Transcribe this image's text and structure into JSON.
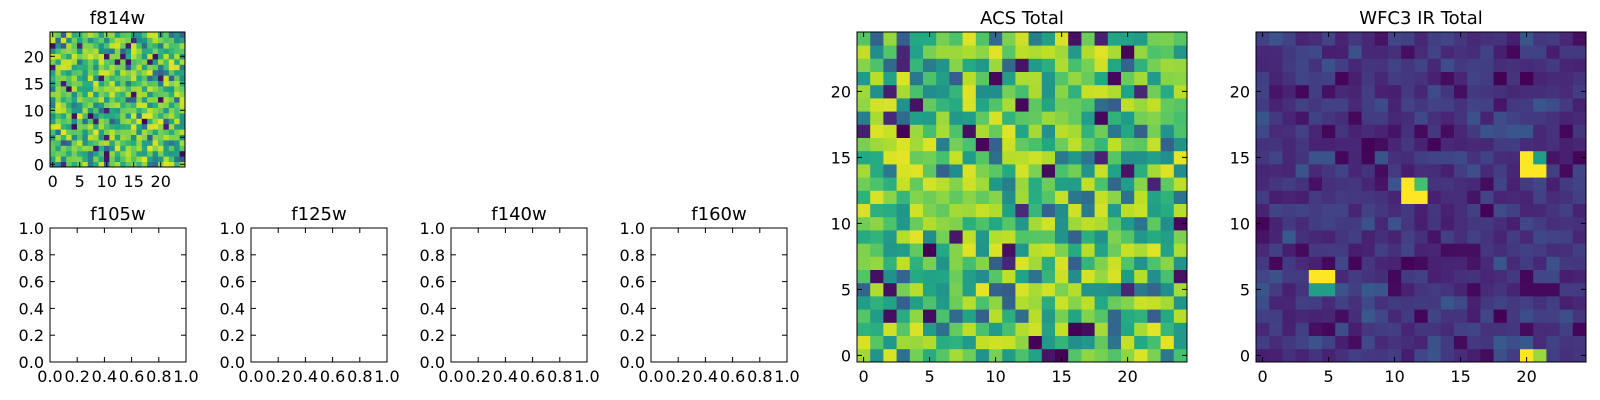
{
  "chart_data": [
    {
      "type": "heatmap",
      "title": "f814w",
      "grid_size": 25,
      "colormap": "viridis",
      "xticks": [
        0,
        5,
        10,
        15,
        20
      ],
      "yticks": [
        0,
        5,
        10,
        15,
        20
      ],
      "xlim": [
        -0.5,
        24.5
      ],
      "ylim": [
        -0.5,
        24.5
      ],
      "value_range": [
        0,
        1
      ],
      "z_description": "25x25 random-noise image, mostly high (yellow-green) values with scattered low (blue/purple) pixels",
      "z_seed": 814,
      "z_profile": "mostly_high"
    },
    {
      "type": "scatter",
      "title": "f105w",
      "empty": true,
      "xlim": [
        0,
        1
      ],
      "ylim": [
        0,
        1
      ],
      "xticks": [
        "0.0",
        "0.2",
        "0.4",
        "0.6",
        "0.8",
        "1.0"
      ],
      "yticks": [
        "0.0",
        "0.2",
        "0.4",
        "0.6",
        "0.8",
        "1.0"
      ]
    },
    {
      "type": "scatter",
      "title": "f125w",
      "empty": true,
      "xlim": [
        0,
        1
      ],
      "ylim": [
        0,
        1
      ],
      "xticks": [
        "0.0",
        "0.2",
        "0.4",
        "0.6",
        "0.8",
        "1.0"
      ],
      "yticks": [
        "0.0",
        "0.2",
        "0.4",
        "0.6",
        "0.8",
        "1.0"
      ]
    },
    {
      "type": "scatter",
      "title": "f140w",
      "empty": true,
      "xlim": [
        0,
        1
      ],
      "ylim": [
        0,
        1
      ],
      "xticks": [
        "0.0",
        "0.2",
        "0.4",
        "0.6",
        "0.8",
        "1.0"
      ],
      "yticks": [
        "0.0",
        "0.2",
        "0.4",
        "0.6",
        "0.8",
        "1.0"
      ]
    },
    {
      "type": "scatter",
      "title": "f160w",
      "empty": true,
      "xlim": [
        0,
        1
      ],
      "ylim": [
        0,
        1
      ],
      "xticks": [
        "0.0",
        "0.2",
        "0.4",
        "0.6",
        "0.8",
        "1.0"
      ],
      "yticks": [
        "0.0",
        "0.2",
        "0.4",
        "0.6",
        "0.8",
        "1.0"
      ]
    },
    {
      "type": "heatmap",
      "title": "ACS Total",
      "grid_size": 25,
      "colormap": "viridis",
      "xticks": [
        0,
        5,
        10,
        15,
        20
      ],
      "yticks": [
        0,
        5,
        10,
        15,
        20
      ],
      "xlim": [
        -0.5,
        24.5
      ],
      "ylim": [
        -0.5,
        24.5
      ],
      "value_range": [
        0,
        1
      ],
      "z_description": "25x25 random-noise image, mostly high (yellow-green) values with scattered low (blue/purple) pixels",
      "z_seed": 2025,
      "z_profile": "mostly_high"
    },
    {
      "type": "heatmap",
      "title": "WFC3 IR Total",
      "grid_size": 25,
      "colormap": "viridis",
      "xticks": [
        0,
        5,
        10,
        15,
        20
      ],
      "yticks": [
        0,
        5,
        10,
        15,
        20
      ],
      "xlim": [
        -0.5,
        24.5
      ],
      "ylim": [
        -0.5,
        24.5
      ],
      "value_range": [
        0,
        1
      ],
      "z_description": "25x25 low-level noise (dark purple/blue) with a few bright yellow sources",
      "z_seed": 3,
      "z_profile": "mostly_low",
      "bright_pixels": [
        {
          "x": 4,
          "y": 6,
          "v": 1.0
        },
        {
          "x": 5,
          "y": 6,
          "v": 1.0
        },
        {
          "x": 4,
          "y": 5,
          "v": 0.55
        },
        {
          "x": 5,
          "y": 5,
          "v": 0.55
        },
        {
          "x": 11,
          "y": 12,
          "v": 1.0
        },
        {
          "x": 12,
          "y": 12,
          "v": 1.0
        },
        {
          "x": 11,
          "y": 13,
          "v": 1.0
        },
        {
          "x": 12,
          "y": 13,
          "v": 0.7
        },
        {
          "x": 20,
          "y": 15,
          "v": 1.0
        },
        {
          "x": 20,
          "y": 14,
          "v": 1.0
        },
        {
          "x": 21,
          "y": 14,
          "v": 1.0
        },
        {
          "x": 21,
          "y": 15,
          "v": 0.55
        },
        {
          "x": 20,
          "y": 0,
          "v": 1.0
        },
        {
          "x": 21,
          "y": 0,
          "v": 0.85
        }
      ]
    }
  ]
}
